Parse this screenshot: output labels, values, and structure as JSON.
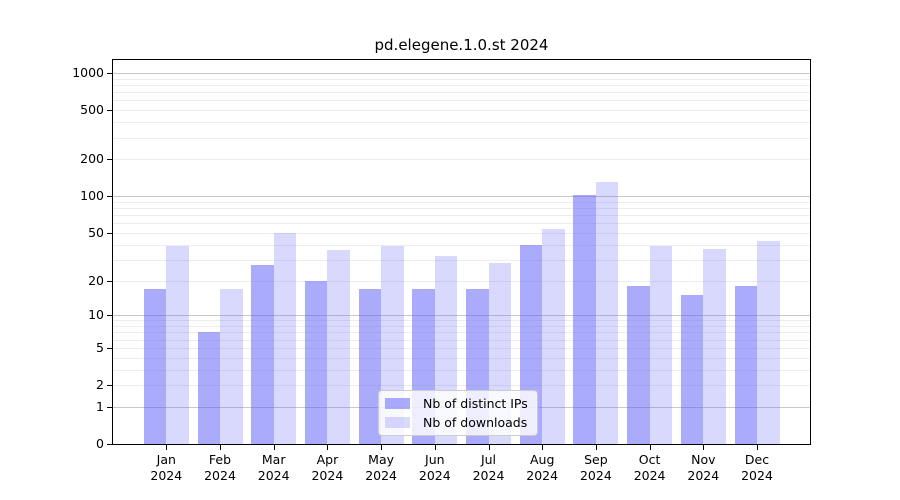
{
  "title": "pd.elegene.1.0.st 2024",
  "legend": {
    "items": [
      {
        "label": "Nb of distinct IPs"
      },
      {
        "label": "Nb of downloads"
      }
    ]
  },
  "colors": {
    "bar_base": "#6666fa",
    "ips_alpha": 0.55,
    "downloads_alpha": 0.25,
    "ips_solid": "#acacfa",
    "downloads_solid": "#dadaf8",
    "major_grid": "#c8c8c8",
    "minor_grid": "#ededed",
    "axis": "#000000"
  },
  "chart_data": {
    "type": "bar",
    "title": "pd.elegene.1.0.st 2024",
    "xlabel": "",
    "ylabel": "",
    "y_scale": "log10(1+x)",
    "ylim": [
      0,
      1200
    ],
    "grid": "on",
    "legend_position": "lower center",
    "months": [
      "Jan",
      "Feb",
      "Mar",
      "Apr",
      "May",
      "Jun",
      "Jul",
      "Aug",
      "Sep",
      "Oct",
      "Nov",
      "Dec"
    ],
    "year": "2024",
    "categories": [
      "Jan 2024",
      "Feb 2024",
      "Mar 2024",
      "Apr 2024",
      "May 2024",
      "Jun 2024",
      "Jul 2024",
      "Aug 2024",
      "Sep 2024",
      "Oct 2024",
      "Nov 2024",
      "Dec 2024"
    ],
    "series": [
      {
        "key": "ips",
        "name": "Nb of distinct IPs",
        "values": [
          17,
          7,
          27,
          20,
          17,
          17,
          17,
          40,
          102,
          18,
          15,
          18
        ]
      },
      {
        "key": "downloads",
        "name": "Nb of downloads",
        "values": [
          39,
          17,
          50,
          36,
          39,
          32,
          28,
          54,
          131,
          39,
          37,
          43
        ]
      }
    ],
    "y_ticks": [
      0,
      1,
      2,
      5,
      10,
      20,
      50,
      100,
      200,
      500,
      1000
    ],
    "gridlines": {
      "major": [
        1,
        10,
        100,
        1000
      ],
      "minor": [
        2,
        3,
        4,
        5,
        6,
        7,
        8,
        9,
        20,
        30,
        40,
        50,
        60,
        70,
        80,
        90,
        200,
        300,
        400,
        500,
        600,
        700,
        800,
        900
      ]
    }
  }
}
